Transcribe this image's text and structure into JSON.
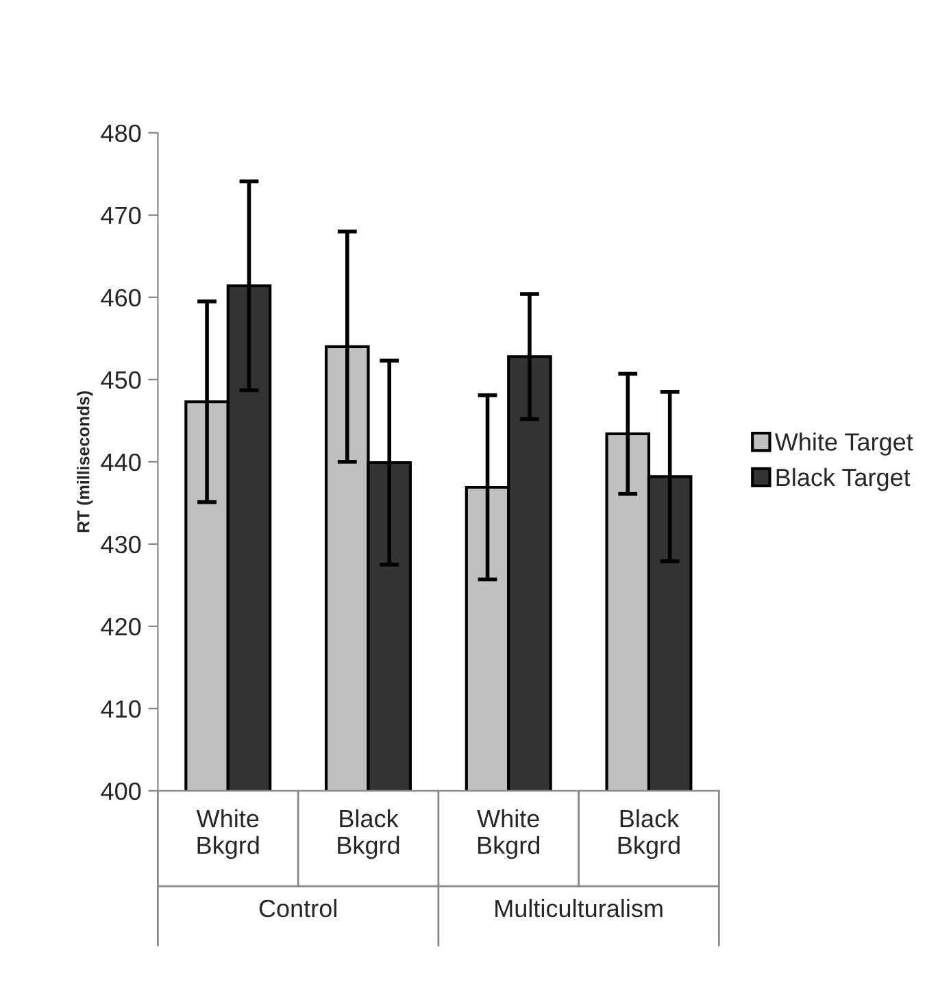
{
  "chart_data": {
    "type": "bar",
    "ylabel": "RT (milliseconds)",
    "categories": [
      "White\nBkgrd",
      "Black\nBkgrd",
      "White\nBkgrd",
      "Black\nBkgrd"
    ],
    "series": [
      {
        "name": "White Target",
        "color": "#c0c0c0",
        "values": [
          447.3,
          454.0,
          436.9,
          443.4
        ],
        "errors": [
          12.2,
          14.0,
          11.2,
          7.3
        ]
      },
      {
        "name": "Black Target",
        "color": "#333333",
        "values": [
          461.4,
          439.9,
          452.8,
          438.2
        ],
        "errors": [
          12.7,
          12.4,
          7.6,
          10.3
        ]
      }
    ],
    "annotations": [
      "Control",
      "Multiculturalism"
    ],
    "ylim": [
      400,
      480
    ],
    "yticks": [
      400,
      410,
      420,
      430,
      440,
      450,
      460,
      470,
      480
    ],
    "grid": false,
    "legend": "right"
  }
}
